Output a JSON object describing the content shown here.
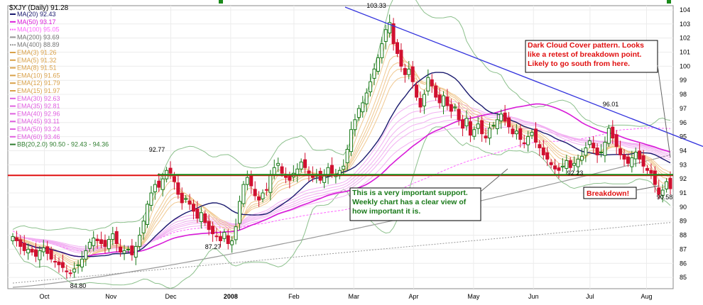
{
  "chart_data": {
    "type": "candlestick",
    "title": "$XJY (Daily) 91.28",
    "y_ticks": [
      85,
      86,
      87,
      88,
      89,
      90,
      91,
      92,
      93,
      94,
      95,
      96,
      97,
      98,
      99,
      100,
      101,
      102,
      103,
      104
    ],
    "ylim": [
      84.2,
      104.3
    ],
    "x_ticks": [
      "Oct",
      "Nov",
      "Dec",
      "2008",
      "Feb",
      "Mar",
      "Apr",
      "May",
      "Jun",
      "Jul",
      "Aug"
    ],
    "legend": [
      {
        "label": "MA(20) 92.43",
        "color": "#1a1a6e",
        "style": "solid"
      },
      {
        "label": "MA(50) 93.17",
        "color": "#d81bd8",
        "style": "solid"
      },
      {
        "label": "MA(100) 95.05",
        "color": "#ff66ff",
        "style": "dashed"
      },
      {
        "label": "MA(200) 93.69",
        "color": "#999999",
        "style": "solid"
      },
      {
        "label": "MA(400) 88.89",
        "color": "#999999",
        "style": "dashed"
      },
      {
        "label": "EMA(3) 91.26",
        "color": "#d9a14a",
        "style": "solid"
      },
      {
        "label": "EMA(5) 91.32",
        "color": "#d9a14a",
        "style": "solid"
      },
      {
        "label": "EMA(8) 91.51",
        "color": "#d9a14a",
        "style": "solid"
      },
      {
        "label": "EMA(10) 91.65",
        "color": "#d9a14a",
        "style": "solid"
      },
      {
        "label": "EMA(12) 91.79",
        "color": "#d9a14a",
        "style": "solid"
      },
      {
        "label": "EMA(15) 91.97",
        "color": "#d9a14a",
        "style": "solid"
      },
      {
        "label": "EMA(30) 92.63",
        "color": "#e060e0",
        "style": "solid"
      },
      {
        "label": "EMA(35) 92.81",
        "color": "#e060e0",
        "style": "solid"
      },
      {
        "label": "EMA(40) 92.96",
        "color": "#e060e0",
        "style": "solid"
      },
      {
        "label": "EMA(45) 93.11",
        "color": "#e060e0",
        "style": "solid"
      },
      {
        "label": "EMA(50) 93.24",
        "color": "#e060e0",
        "style": "solid"
      },
      {
        "label": "EMA(60) 93.46",
        "color": "#e060e0",
        "style": "solid"
      },
      {
        "label": "BB(20,2.0) 90.50 - 92.43 - 94.36",
        "color": "#2e7d2e",
        "style": "solid"
      }
    ],
    "price_labels": [
      {
        "text": "103.33",
        "value": 103.33,
        "month": "Mar"
      },
      {
        "text": "92.77",
        "value": 92.77,
        "month": "Nov"
      },
      {
        "text": "87.27",
        "value": 87.27,
        "month": "Dec"
      },
      {
        "text": "84.80",
        "value": 84.8,
        "month": "Oct"
      },
      {
        "text": "96.01",
        "value": 96.01,
        "month": "Jul"
      },
      {
        "text": "92.23",
        "value": 92.23,
        "month": "Jun"
      },
      {
        "text": "90.58",
        "value": 90.58,
        "month": "Aug"
      }
    ],
    "support_level": 92.25,
    "resistance_level": 92.3,
    "trendline": {
      "start_value": 104.2,
      "end_value": 94.3,
      "color": "#3333dd"
    },
    "close_series": [
      87.9,
      87.6,
      87.2,
      86.9,
      87.0,
      86.8,
      86.5,
      86.9,
      87.1,
      86.7,
      86.3,
      86.1,
      85.9,
      85.7,
      85.4,
      85.3,
      85.6,
      85.9,
      86.3,
      86.9,
      87.5,
      87.8,
      87.6,
      87.4,
      87.2,
      87.7,
      88.1,
      87.4,
      86.8,
      86.9,
      87.0,
      86.6,
      87.2,
      88.0,
      89.0,
      90.2,
      91.0,
      91.6,
      91.4,
      92.0,
      92.6,
      92.4,
      91.8,
      90.9,
      90.3,
      90.6,
      90.2,
      89.7,
      89.2,
      89.6,
      88.9,
      88.4,
      88.1,
      87.9,
      87.6,
      88.2,
      87.4,
      87.6,
      88.6,
      90.4,
      91.6,
      92.1,
      91.5,
      90.8,
      90.5,
      91.0,
      91.2,
      92.3,
      92.8,
      93.1,
      92.4,
      92.1,
      91.9,
      92.4,
      92.7,
      93.2,
      92.8,
      92.4,
      92.1,
      92.3,
      91.9,
      92.2,
      92.8,
      92.4,
      92.3,
      92.6,
      92.9,
      94.1,
      95.5,
      96.2,
      97.0,
      97.4,
      98.1,
      98.9,
      99.8,
      100.6,
      101.6,
      102.6,
      103.1,
      101.6,
      100.9,
      100.0,
      99.4,
      99.8,
      98.9,
      97.8,
      97.1,
      98.0,
      99.2,
      98.6,
      97.8,
      97.4,
      97.9,
      97.2,
      96.8,
      97.1,
      96.2,
      95.6,
      96.3,
      95.1,
      95.5,
      95.9,
      95.2,
      94.9,
      95.6,
      95.8,
      96.2,
      96.6,
      96.1,
      95.7,
      95.2,
      95.4,
      94.8,
      94.5,
      95.0,
      95.3,
      94.6,
      94.2,
      93.7,
      93.4,
      93.0,
      92.7,
      92.6,
      92.9,
      93.3,
      92.8,
      93.1,
      93.4,
      93.6,
      94.2,
      94.7,
      94.2,
      93.7,
      93.9,
      94.6,
      95.6,
      94.9,
      94.3,
      93.7,
      93.4,
      93.1,
      93.5,
      93.9,
      93.4,
      92.9,
      92.6,
      92.4,
      91.6,
      90.9,
      91.2,
      91.8,
      91.3
    ]
  },
  "annotations": {
    "dark_cloud": "Dark Cloud Cover pattern. Looks like a retest of breakdown point. Likely to go south from here.",
    "support_note": "This is a very important support. Weekly chart has a clear view of how important it is.",
    "breakdown": "Breakdown!"
  },
  "colors": {
    "up_candle": "#1a7a1a",
    "down_candle": "#d01030",
    "support_line": "#e01010",
    "green_line": "#1a8a1a",
    "bb_band": "#8cc08c",
    "annotation_red": "#e01010",
    "annotation_green": "#1a7a1a"
  }
}
